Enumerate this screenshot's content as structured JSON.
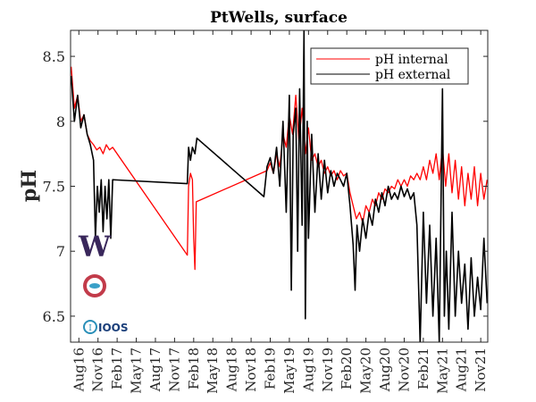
{
  "chart_data": {
    "type": "line",
    "title": "PtWells, surface",
    "xlabel": "",
    "ylabel": "pH",
    "x_units": "months since Jan 2016",
    "xlim": [
      5.7,
      71.1
    ],
    "ylim": [
      6.3,
      8.7
    ],
    "yticks": [
      6.5,
      7,
      7.5,
      8,
      8.5
    ],
    "ytick_labels": [
      "6.5",
      "7",
      "7.5",
      "8",
      "8.5"
    ],
    "xticks": [
      7,
      10,
      13,
      16,
      19,
      22,
      25,
      28,
      31,
      34,
      37,
      40,
      43,
      46,
      49,
      52,
      55,
      58,
      61,
      64,
      67,
      70
    ],
    "xtick_labels": [
      "Aug16",
      "Nov16",
      "Feb17",
      "May17",
      "Aug17",
      "Nov17",
      "Feb18",
      "May18",
      "Aug18",
      "Nov18",
      "Feb19",
      "May19",
      "Aug19",
      "Nov19",
      "Feb20",
      "May20",
      "Aug20",
      "Nov20",
      "Feb21",
      "May21",
      "Aug21",
      "Nov21"
    ],
    "grid": false,
    "legend_position": "top-right",
    "series": [
      {
        "name": "pH internal",
        "color": "#ff0000",
        "points": [
          [
            5.8,
            8.42
          ],
          [
            6.3,
            8.1
          ],
          [
            6.8,
            8.2
          ],
          [
            7.3,
            8.0
          ],
          [
            7.8,
            8.05
          ],
          [
            8.3,
            7.9
          ],
          [
            8.8,
            7.85
          ],
          [
            9.3,
            7.82
          ],
          [
            9.8,
            7.78
          ],
          [
            10.3,
            7.8
          ],
          [
            10.8,
            7.75
          ],
          [
            11.3,
            7.82
          ],
          [
            11.8,
            7.78
          ],
          [
            12.3,
            7.8
          ],
          [
            24.0,
            6.97
          ],
          [
            24.2,
            7.5
          ],
          [
            24.5,
            7.6
          ],
          [
            24.8,
            7.55
          ],
          [
            25.0,
            7.1
          ],
          [
            25.2,
            6.86
          ],
          [
            25.4,
            7.38
          ],
          [
            36.5,
            7.62
          ],
          [
            37.0,
            7.68
          ],
          [
            37.5,
            7.6
          ],
          [
            38.0,
            7.75
          ],
          [
            38.5,
            7.65
          ],
          [
            39.0,
            7.9
          ],
          [
            39.5,
            7.8
          ],
          [
            40.0,
            8.05
          ],
          [
            40.5,
            7.9
          ],
          [
            41.0,
            8.2
          ],
          [
            41.5,
            7.85
          ],
          [
            42.0,
            8.1
          ],
          [
            42.5,
            7.75
          ],
          [
            43.0,
            7.95
          ],
          [
            43.5,
            7.7
          ],
          [
            44.0,
            7.75
          ],
          [
            44.5,
            7.65
          ],
          [
            45.0,
            7.7
          ],
          [
            45.5,
            7.6
          ],
          [
            46.0,
            7.65
          ],
          [
            46.5,
            7.58
          ],
          [
            47.0,
            7.62
          ],
          [
            47.5,
            7.55
          ],
          [
            48.0,
            7.62
          ],
          [
            48.5,
            7.58
          ],
          [
            49.0,
            7.6
          ],
          [
            49.5,
            7.45
          ],
          [
            50.0,
            7.35
          ],
          [
            50.5,
            7.25
          ],
          [
            51.0,
            7.3
          ],
          [
            51.5,
            7.22
          ],
          [
            52.0,
            7.35
          ],
          [
            52.5,
            7.3
          ],
          [
            53.0,
            7.4
          ],
          [
            53.5,
            7.35
          ],
          [
            54.0,
            7.45
          ],
          [
            54.5,
            7.4
          ],
          [
            55.0,
            7.48
          ],
          [
            55.5,
            7.45
          ],
          [
            56.0,
            7.5
          ],
          [
            56.5,
            7.48
          ],
          [
            57.0,
            7.55
          ],
          [
            57.5,
            7.5
          ],
          [
            58.0,
            7.55
          ],
          [
            58.5,
            7.5
          ],
          [
            59.0,
            7.58
          ],
          [
            59.5,
            7.55
          ],
          [
            60.0,
            7.6
          ],
          [
            60.5,
            7.55
          ],
          [
            61.0,
            7.65
          ],
          [
            61.5,
            7.55
          ],
          [
            62.0,
            7.7
          ],
          [
            62.5,
            7.6
          ],
          [
            63.0,
            7.75
          ],
          [
            63.5,
            7.55
          ],
          [
            64.0,
            7.8
          ],
          [
            64.5,
            7.5
          ],
          [
            65.0,
            7.75
          ],
          [
            65.5,
            7.45
          ],
          [
            66.0,
            7.7
          ],
          [
            66.5,
            7.4
          ],
          [
            67.0,
            7.65
          ],
          [
            67.5,
            7.35
          ],
          [
            68.0,
            7.6
          ],
          [
            68.5,
            7.4
          ],
          [
            69.0,
            7.65
          ],
          [
            69.5,
            7.35
          ],
          [
            70.0,
            7.6
          ],
          [
            70.5,
            7.4
          ],
          [
            71.0,
            7.55
          ]
        ]
      },
      {
        "name": "pH external",
        "color": "#000000",
        "points": [
          [
            5.8,
            8.35
          ],
          [
            6.3,
            8.0
          ],
          [
            6.8,
            8.2
          ],
          [
            7.3,
            7.95
          ],
          [
            7.8,
            8.05
          ],
          [
            8.3,
            7.9
          ],
          [
            8.8,
            7.82
          ],
          [
            9.3,
            7.7
          ],
          [
            9.6,
            7.1
          ],
          [
            9.9,
            7.5
          ],
          [
            10.2,
            7.3
          ],
          [
            10.5,
            7.55
          ],
          [
            10.8,
            7.15
          ],
          [
            11.1,
            7.5
          ],
          [
            11.4,
            7.25
          ],
          [
            11.7,
            7.55
          ],
          [
            12.0,
            7.1
          ],
          [
            12.3,
            7.55
          ],
          [
            24.0,
            7.52
          ],
          [
            24.2,
            7.8
          ],
          [
            24.5,
            7.7
          ],
          [
            24.8,
            7.8
          ],
          [
            25.2,
            7.75
          ],
          [
            25.5,
            7.87
          ],
          [
            36.0,
            7.42
          ],
          [
            36.5,
            7.65
          ],
          [
            37.0,
            7.72
          ],
          [
            37.5,
            7.6
          ],
          [
            38.0,
            7.8
          ],
          [
            38.5,
            7.5
          ],
          [
            39.0,
            8.0
          ],
          [
            39.5,
            7.3
          ],
          [
            40.0,
            8.2
          ],
          [
            40.3,
            6.7
          ],
          [
            40.6,
            7.9
          ],
          [
            41.0,
            8.1
          ],
          [
            41.3,
            7.0
          ],
          [
            41.6,
            8.25
          ],
          [
            42.0,
            7.2
          ],
          [
            42.3,
            8.7
          ],
          [
            42.5,
            6.48
          ],
          [
            42.8,
            8.0
          ],
          [
            43.0,
            7.1
          ],
          [
            43.5,
            7.9
          ],
          [
            44.0,
            7.3
          ],
          [
            44.5,
            7.75
          ],
          [
            45.0,
            7.4
          ],
          [
            45.5,
            7.7
          ],
          [
            46.0,
            7.45
          ],
          [
            46.5,
            7.62
          ],
          [
            47.0,
            7.5
          ],
          [
            47.5,
            7.6
          ],
          [
            48.0,
            7.55
          ],
          [
            48.5,
            7.5
          ],
          [
            49.0,
            7.6
          ],
          [
            49.5,
            7.35
          ],
          [
            50.0,
            7.05
          ],
          [
            50.3,
            6.7
          ],
          [
            50.6,
            7.2
          ],
          [
            51.0,
            7.0
          ],
          [
            51.5,
            7.25
          ],
          [
            52.0,
            7.1
          ],
          [
            52.5,
            7.3
          ],
          [
            53.0,
            7.2
          ],
          [
            53.5,
            7.4
          ],
          [
            54.0,
            7.3
          ],
          [
            54.5,
            7.45
          ],
          [
            55.0,
            7.35
          ],
          [
            55.5,
            7.5
          ],
          [
            56.0,
            7.4
          ],
          [
            56.5,
            7.45
          ],
          [
            57.0,
            7.4
          ],
          [
            57.5,
            7.5
          ],
          [
            58.0,
            7.42
          ],
          [
            58.5,
            7.48
          ],
          [
            59.0,
            7.4
          ],
          [
            59.5,
            7.45
          ],
          [
            60.0,
            7.2
          ],
          [
            60.5,
            6.3
          ],
          [
            61.0,
            7.3
          ],
          [
            61.5,
            6.6
          ],
          [
            62.0,
            7.2
          ],
          [
            62.5,
            6.5
          ],
          [
            63.0,
            7.1
          ],
          [
            63.5,
            6.3
          ],
          [
            64.0,
            8.25
          ],
          [
            64.3,
            6.5
          ],
          [
            64.6,
            7.0
          ],
          [
            65.0,
            6.4
          ],
          [
            65.5,
            7.3
          ],
          [
            66.0,
            6.5
          ],
          [
            66.5,
            7.0
          ],
          [
            67.0,
            6.6
          ],
          [
            67.5,
            6.9
          ],
          [
            68.0,
            6.4
          ],
          [
            68.5,
            6.95
          ],
          [
            69.0,
            6.5
          ],
          [
            69.5,
            6.8
          ],
          [
            70.0,
            6.55
          ],
          [
            70.5,
            7.1
          ],
          [
            71.0,
            6.6
          ]
        ]
      }
    ]
  },
  "logos": {
    "uw_letter": "W",
    "ioos_text": "IOOS"
  }
}
